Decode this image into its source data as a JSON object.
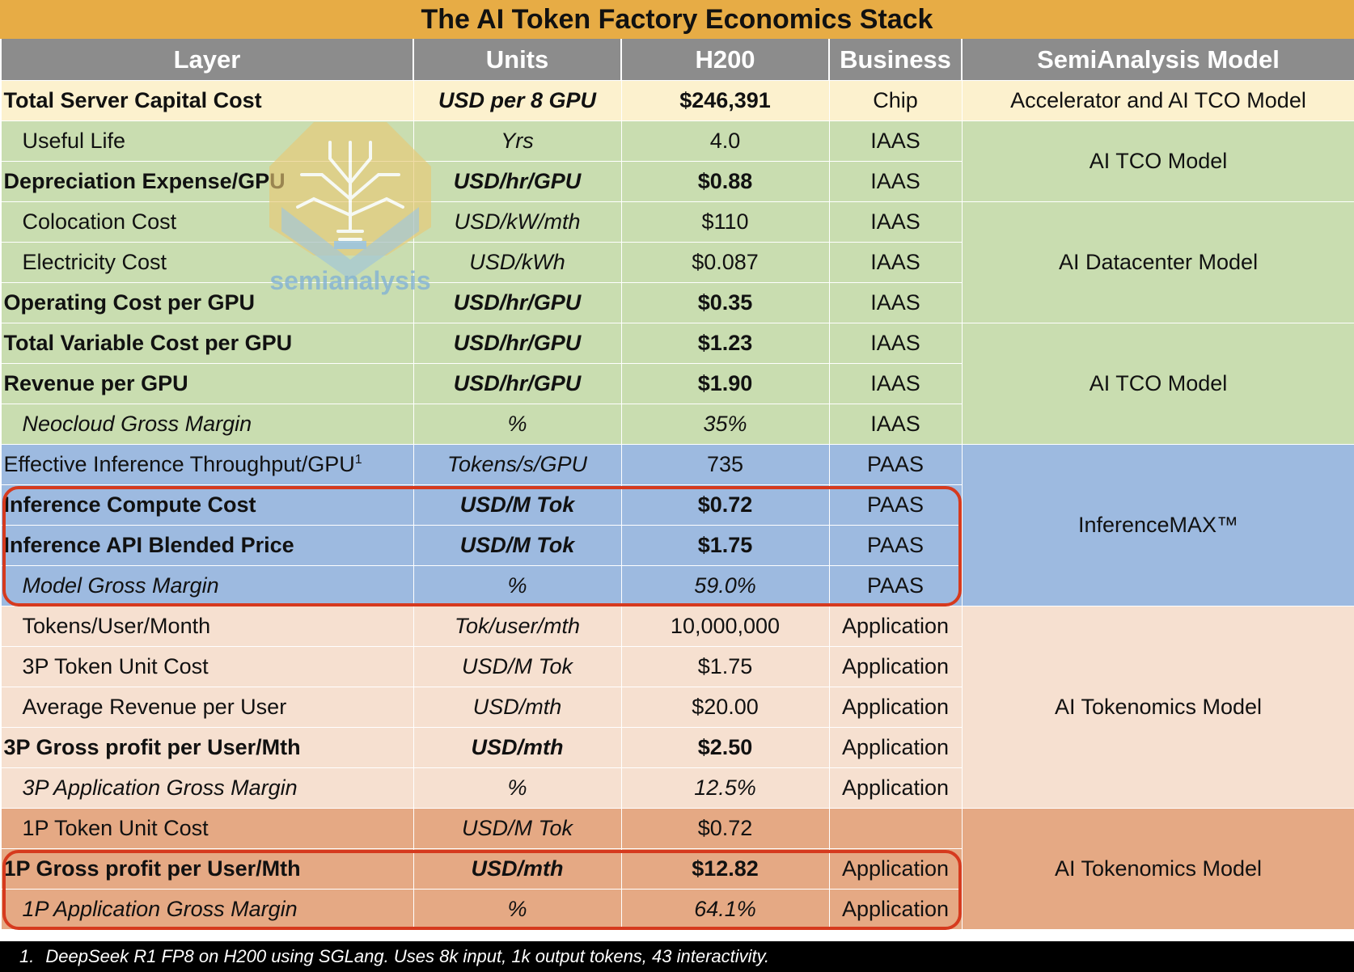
{
  "title": "The AI Token Factory Economics Stack",
  "headers": [
    "Layer",
    "Units",
    "H200",
    "Business",
    "SemiAnalysis Model"
  ],
  "rows": [
    {
      "layer": "Total Server Capital Cost",
      "units": "USD per 8 GPU",
      "h200": "$246,391",
      "business": "Chip",
      "style": "bold",
      "indent": false,
      "group": "chip"
    },
    {
      "layer": "Useful Life",
      "units": "Yrs",
      "h200": "4.0",
      "business": "IAAS",
      "style": "normal",
      "indent": true,
      "group": "iaas"
    },
    {
      "layer": "Depreciation Expense/GPU",
      "units": "USD/hr/GPU",
      "h200": "$0.88",
      "business": "IAAS",
      "style": "bold",
      "indent": false,
      "group": "iaas"
    },
    {
      "layer": "Colocation Cost",
      "units": "USD/kW/mth",
      "h200": "$110",
      "business": "IAAS",
      "style": "normal",
      "indent": true,
      "group": "iaas"
    },
    {
      "layer": "Electricity Cost",
      "units": "USD/kWh",
      "h200": "$0.087",
      "business": "IAAS",
      "style": "normal",
      "indent": true,
      "group": "iaas"
    },
    {
      "layer": "Operating Cost per GPU",
      "units": "USD/hr/GPU",
      "h200": "$0.35",
      "business": "IAAS",
      "style": "bold",
      "indent": false,
      "group": "iaas"
    },
    {
      "layer": "Total Variable Cost per GPU",
      "units": "USD/hr/GPU",
      "h200": "$1.23",
      "business": "IAAS",
      "style": "bold",
      "indent": false,
      "group": "iaas"
    },
    {
      "layer": "Revenue per GPU",
      "units": "USD/hr/GPU",
      "h200": "$1.90",
      "business": "IAAS",
      "style": "bold",
      "indent": false,
      "group": "iaas"
    },
    {
      "layer": "Neocloud Gross Margin",
      "units": "%",
      "h200": "35%",
      "business": "IAAS",
      "style": "italic",
      "indent": true,
      "group": "iaas"
    },
    {
      "layer": "Effective Inference Throughput/GPU",
      "sup": "1",
      "units": "Tokens/s/GPU",
      "h200": "735",
      "business": "PAAS",
      "style": "normal",
      "indent": false,
      "group": "paas"
    },
    {
      "layer": "Inference Compute Cost",
      "units": "USD/M Tok",
      "h200": "$0.72",
      "business": "PAAS",
      "style": "bold",
      "indent": false,
      "group": "paas"
    },
    {
      "layer": "Inference API Blended Price",
      "units": "USD/M Tok",
      "h200": "$1.75",
      "business": "PAAS",
      "style": "bold",
      "indent": false,
      "group": "paas"
    },
    {
      "layer": "Model Gross Margin",
      "units": "%",
      "h200": "59.0%",
      "business": "PAAS",
      "style": "italic",
      "indent": true,
      "group": "paas"
    },
    {
      "layer": "Tokens/User/Month",
      "units": "Tok/user/mth",
      "h200": "10,000,000",
      "business": "Application",
      "style": "normal",
      "indent": true,
      "group": "app"
    },
    {
      "layer": "3P Token Unit Cost",
      "units": "USD/M Tok",
      "h200": "$1.75",
      "business": "Application",
      "style": "normal",
      "indent": true,
      "group": "app"
    },
    {
      "layer": "Average Revenue per User",
      "units": "USD/mth",
      "h200": "$20.00",
      "business": "Application",
      "style": "normal",
      "indent": true,
      "group": "app"
    },
    {
      "layer": "3P Gross profit per User/Mth",
      "units": "USD/mth",
      "h200": "$2.50",
      "business": "Application",
      "style": "bold",
      "indent": false,
      "group": "app"
    },
    {
      "layer": "3P Application Gross Margin",
      "units": "%",
      "h200": "12.5%",
      "business": "Application",
      "style": "italic",
      "indent": true,
      "group": "app"
    },
    {
      "layer": "1P Token Unit Cost",
      "units": "USD/M Tok",
      "h200": "$0.72",
      "business": "",
      "style": "normal",
      "indent": true,
      "group": "app1p"
    },
    {
      "layer": "1P Gross profit per User/Mth",
      "units": "USD/mth",
      "h200": "$12.82",
      "business": "Application",
      "style": "bold",
      "indent": false,
      "group": "app1p"
    },
    {
      "layer": "1P Application Gross Margin",
      "units": "%",
      "h200": "64.1%",
      "business": "Application",
      "style": "italic",
      "indent": true,
      "group": "app1p"
    }
  ],
  "models": [
    {
      "label": "Accelerator and AI TCO Model",
      "start": 0,
      "span": 1,
      "group": "chip"
    },
    {
      "label": "AI TCO Model",
      "start": 1,
      "span": 2,
      "group": "iaas"
    },
    {
      "label": "AI Datacenter Model",
      "start": 3,
      "span": 3,
      "group": "iaas"
    },
    {
      "label": "AI TCO Model",
      "start": 6,
      "span": 3,
      "group": "iaas"
    },
    {
      "label": "InferenceMAX™",
      "start": 9,
      "span": 4,
      "group": "paas"
    },
    {
      "label": "AI Tokenomics Model",
      "start": 13,
      "span": 5,
      "group": "app"
    },
    {
      "label": "AI Tokenomics Model",
      "start": 18,
      "span": 3,
      "group": "app1p"
    }
  ],
  "highlights": [
    {
      "from": 10,
      "to": 12,
      "color": "#D63A1E"
    },
    {
      "from": 19,
      "to": 20,
      "color": "#D63A1E"
    }
  ],
  "watermark": {
    "label": "semianalysis",
    "icon": "lightbulb-circuit-icon"
  },
  "footnote": {
    "number": "1.",
    "text": "DeepSeek R1 FP8 on H200 using SGLang. Uses 8k input, 1k output tokens, 43 interactivity."
  },
  "colors": {
    "title_bg": "#E7AC45",
    "header_bg": "#8C8C8C",
    "chip": "#FCF1CE",
    "iaas": "#C9DDB0",
    "paas": "#9DBAE0",
    "app": "#F6E0D0",
    "app1p": "#E5A984",
    "highlight": "#D63A1E"
  }
}
